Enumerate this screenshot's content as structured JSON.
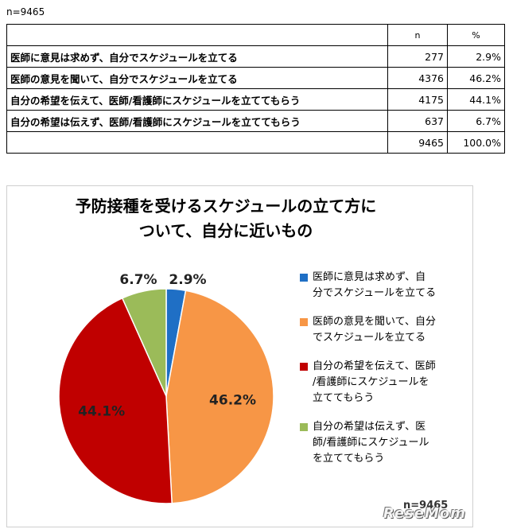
{
  "sample_note": "n=9465",
  "table": {
    "header": {
      "label": "",
      "n": "n",
      "pct": "%"
    },
    "rows": [
      {
        "label": "医師に意見は求めず、自分でスケジュールを立てる",
        "n": "277",
        "pct": "2.9%"
      },
      {
        "label": "医師の意見を聞いて、自分でスケジュールを立てる",
        "n": "4376",
        "pct": "46.2%"
      },
      {
        "label": "自分の希望を伝えて、医師/看護師にスケジュールを立ててもらう",
        "n": "4175",
        "pct": "44.1%"
      },
      {
        "label": "自分の希望は伝えず、医師/看護師にスケジュールを立ててもらう",
        "n": "637",
        "pct": "6.7%"
      }
    ],
    "total": {
      "label": "",
      "n": "9465",
      "pct": "100.0%"
    }
  },
  "chart_data": {
    "type": "pie",
    "title_line1": "予防接種を受けるスケジュールの立て方に",
    "title_line2": "ついて、自分に近いもの",
    "slices": [
      {
        "name": "医師に意見は求めず、自分でスケジュールを立てる",
        "legend_lines": [
          "医師に意見は求めず、自",
          "分でスケジュールを立てる"
        ],
        "value": 2.9,
        "label": "2.9%",
        "color": "#1F6FC5"
      },
      {
        "name": "医師の意見を聞いて、自分でスケジュールを立てる",
        "legend_lines": [
          "医師の意見を聞いて、自分",
          "でスケジュールを立てる"
        ],
        "value": 46.2,
        "label": "46.2%",
        "color": "#F79646"
      },
      {
        "name": "自分の希望を伝えて、医師/看護師にスケジュールを立ててもらう",
        "legend_lines": [
          "自分の希望を伝えて、医師",
          "/看護師にスケジュールを",
          "立ててもらう"
        ],
        "value": 44.1,
        "label": "44.1%",
        "color": "#C00000"
      },
      {
        "name": "自分の希望は伝えず、医師/看護師にスケジュールを立ててもらう",
        "legend_lines": [
          "自分の希望は伝えず、医",
          "師/看護師にスケジュール",
          "を立ててもらう"
        ],
        "value": 6.7,
        "label": "6.7%",
        "color": "#9BBB59"
      }
    ],
    "legend_position": "right",
    "footer": "n=9465"
  },
  "watermark": "ReseMom"
}
